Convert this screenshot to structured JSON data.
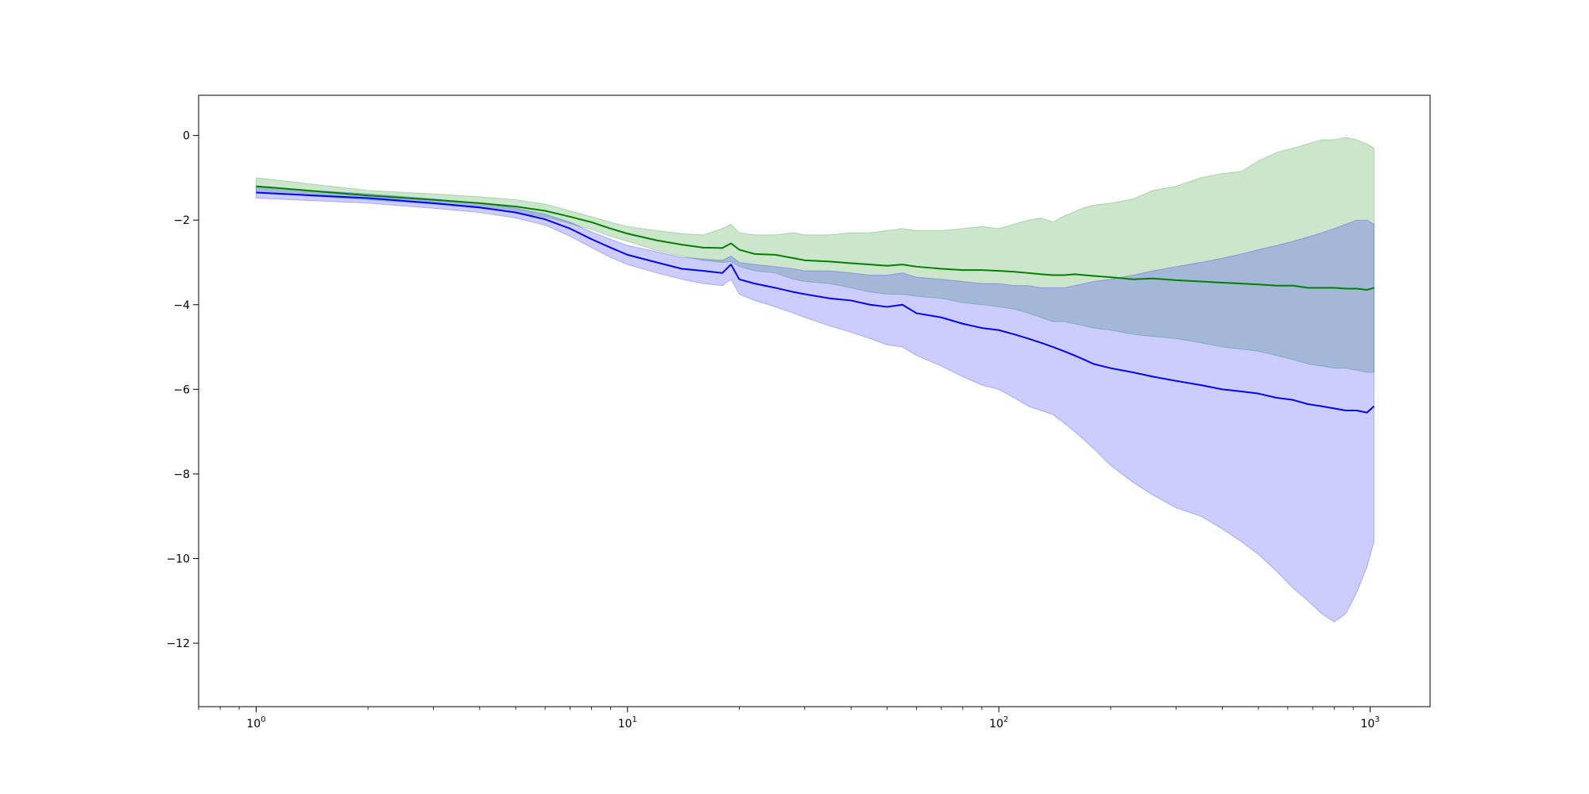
{
  "chart_data": {
    "type": "line",
    "title": "",
    "xlabel": "",
    "ylabel": "",
    "xscale": "log",
    "xlim": [
      0.7,
      1450
    ],
    "ylim": [
      -13.5,
      0.95
    ],
    "grid": false,
    "legend": "none",
    "x_ticks": [
      {
        "value": 1,
        "base": "10",
        "exp": "0"
      },
      {
        "value": 10,
        "base": "10",
        "exp": "1"
      },
      {
        "value": 100,
        "base": "10",
        "exp": "2"
      },
      {
        "value": 1000,
        "base": "10",
        "exp": "3"
      }
    ],
    "y_ticks": [
      {
        "value": 0,
        "label": "0"
      },
      {
        "value": -2,
        "label": "−2"
      },
      {
        "value": -4,
        "label": "−4"
      },
      {
        "value": -6,
        "label": "−6"
      },
      {
        "value": -8,
        "label": "−8"
      },
      {
        "value": -10,
        "label": "−10"
      },
      {
        "value": -12,
        "label": "−12"
      }
    ],
    "series": [
      {
        "color": "#008000",
        "band_color": "#008000",
        "band_opacity": 0.2,
        "x": [
          1,
          2,
          3,
          4,
          5,
          6,
          7,
          8,
          9,
          10,
          12,
          14,
          16,
          18,
          19,
          20,
          22,
          25,
          28,
          30,
          35,
          40,
          45,
          50,
          55,
          60,
          70,
          80,
          90,
          100,
          110,
          120,
          130,
          140,
          150,
          160,
          170,
          180,
          200,
          230,
          260,
          300,
          350,
          400,
          450,
          500,
          560,
          620,
          680,
          740,
          800,
          860,
          920,
          980,
          1024
        ],
        "y": [
          -1.2,
          -1.42,
          -1.52,
          -1.6,
          -1.68,
          -1.78,
          -1.92,
          -2.05,
          -2.2,
          -2.32,
          -2.48,
          -2.58,
          -2.65,
          -2.66,
          -2.55,
          -2.7,
          -2.8,
          -2.82,
          -2.9,
          -2.95,
          -2.98,
          -3.02,
          -3.05,
          -3.08,
          -3.05,
          -3.1,
          -3.15,
          -3.18,
          -3.18,
          -3.2,
          -3.22,
          -3.25,
          -3.28,
          -3.3,
          -3.3,
          -3.28,
          -3.3,
          -3.32,
          -3.35,
          -3.4,
          -3.38,
          -3.42,
          -3.45,
          -3.48,
          -3.5,
          -3.52,
          -3.55,
          -3.55,
          -3.6,
          -3.6,
          -3.6,
          -3.62,
          -3.62,
          -3.65,
          -3.6
        ],
        "upper": [
          -1.0,
          -1.3,
          -1.38,
          -1.45,
          -1.52,
          -1.62,
          -1.78,
          -1.92,
          -2.05,
          -2.15,
          -2.25,
          -2.32,
          -2.35,
          -2.2,
          -2.1,
          -2.3,
          -2.35,
          -2.35,
          -2.3,
          -2.35,
          -2.35,
          -2.3,
          -2.3,
          -2.25,
          -2.2,
          -2.25,
          -2.25,
          -2.2,
          -2.15,
          -2.2,
          -2.1,
          -2.0,
          -1.95,
          -2.05,
          -1.9,
          -1.8,
          -1.7,
          -1.65,
          -1.6,
          -1.5,
          -1.3,
          -1.2,
          -1.0,
          -0.9,
          -0.85,
          -0.6,
          -0.4,
          -0.3,
          -0.2,
          -0.1,
          -0.1,
          -0.05,
          -0.1,
          -0.2,
          -0.3
        ],
        "lower": [
          -1.35,
          -1.52,
          -1.62,
          -1.72,
          -1.82,
          -1.92,
          -2.08,
          -2.22,
          -2.38,
          -2.5,
          -2.72,
          -2.85,
          -2.95,
          -3.0,
          -2.98,
          -3.1,
          -3.2,
          -3.25,
          -3.4,
          -3.45,
          -3.5,
          -3.6,
          -3.7,
          -3.75,
          -3.75,
          -3.8,
          -3.85,
          -3.95,
          -4.0,
          -4.05,
          -4.1,
          -4.2,
          -4.3,
          -4.4,
          -4.4,
          -4.45,
          -4.5,
          -4.55,
          -4.6,
          -4.7,
          -4.75,
          -4.8,
          -4.9,
          -5.0,
          -5.05,
          -5.1,
          -5.2,
          -5.3,
          -5.4,
          -5.45,
          -5.5,
          -5.5,
          -5.55,
          -5.6,
          -5.6
        ]
      },
      {
        "color": "#0000ff",
        "band_color": "#0000ff",
        "band_opacity": 0.2,
        "x": [
          1,
          2,
          3,
          4,
          5,
          6,
          7,
          8,
          9,
          10,
          12,
          14,
          16,
          18,
          19,
          20,
          22,
          25,
          28,
          30,
          35,
          40,
          45,
          50,
          55,
          60,
          70,
          80,
          90,
          100,
          110,
          120,
          130,
          140,
          150,
          160,
          170,
          180,
          200,
          230,
          260,
          300,
          350,
          400,
          450,
          500,
          560,
          620,
          680,
          740,
          800,
          860,
          920,
          980,
          1024
        ],
        "y": [
          -1.35,
          -1.48,
          -1.6,
          -1.7,
          -1.82,
          -1.98,
          -2.2,
          -2.45,
          -2.65,
          -2.82,
          -3.0,
          -3.15,
          -3.2,
          -3.25,
          -3.05,
          -3.4,
          -3.5,
          -3.6,
          -3.7,
          -3.75,
          -3.85,
          -3.9,
          -4.0,
          -4.05,
          -4.0,
          -4.2,
          -4.3,
          -4.45,
          -4.55,
          -4.6,
          -4.7,
          -4.8,
          -4.9,
          -5.0,
          -5.1,
          -5.2,
          -5.3,
          -5.4,
          -5.5,
          -5.6,
          -5.7,
          -5.8,
          -5.9,
          -6.0,
          -6.05,
          -6.1,
          -6.2,
          -6.25,
          -6.35,
          -6.4,
          -6.45,
          -6.5,
          -6.5,
          -6.55,
          -6.4
        ],
        "upper": [
          -1.22,
          -1.38,
          -1.5,
          -1.6,
          -1.72,
          -1.86,
          -2.05,
          -2.28,
          -2.45,
          -2.6,
          -2.75,
          -2.88,
          -2.92,
          -2.95,
          -2.85,
          -3.0,
          -3.05,
          -3.1,
          -3.15,
          -3.2,
          -3.2,
          -3.25,
          -3.3,
          -3.3,
          -3.25,
          -3.35,
          -3.4,
          -3.45,
          -3.5,
          -3.5,
          -3.55,
          -3.55,
          -3.6,
          -3.6,
          -3.6,
          -3.55,
          -3.5,
          -3.45,
          -3.4,
          -3.3,
          -3.2,
          -3.1,
          -3.0,
          -2.9,
          -2.8,
          -2.7,
          -2.6,
          -2.5,
          -2.4,
          -2.3,
          -2.2,
          -2.1,
          -2.0,
          -2.0,
          -2.1
        ],
        "lower": [
          -1.48,
          -1.6,
          -1.72,
          -1.82,
          -1.95,
          -2.12,
          -2.38,
          -2.65,
          -2.88,
          -3.05,
          -3.25,
          -3.4,
          -3.5,
          -3.55,
          -3.4,
          -3.75,
          -3.9,
          -4.05,
          -4.2,
          -4.3,
          -4.5,
          -4.65,
          -4.8,
          -4.95,
          -5.0,
          -5.2,
          -5.45,
          -5.7,
          -5.9,
          -6.0,
          -6.2,
          -6.4,
          -6.5,
          -6.6,
          -6.8,
          -7.0,
          -7.2,
          -7.4,
          -7.8,
          -8.2,
          -8.5,
          -8.8,
          -9.0,
          -9.3,
          -9.6,
          -9.9,
          -10.3,
          -10.7,
          -11.0,
          -11.3,
          -11.5,
          -11.3,
          -10.8,
          -10.2,
          -9.6
        ]
      }
    ]
  }
}
